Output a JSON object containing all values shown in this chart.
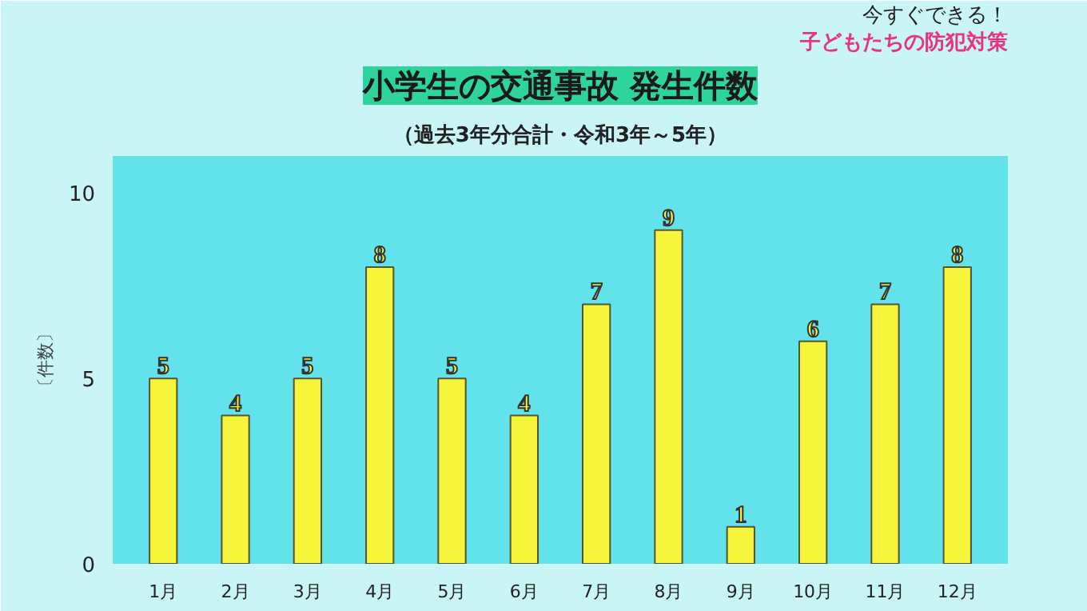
{
  "chart_data": {
    "type": "bar",
    "title": "小学生の交通事故 発生件数",
    "subtitle": "（過去3年分合計・令和3年～5年）",
    "ylabel": "〔件数〕",
    "annotations": [
      "今すぐできる！",
      "子どもたちの防犯対策"
    ],
    "categories": [
      "1月",
      "2月",
      "3月",
      "4月",
      "5月",
      "6月",
      "7月",
      "8月",
      "9月",
      "10月",
      "11月",
      "12月"
    ],
    "values": [
      5,
      4,
      5,
      8,
      5,
      4,
      7,
      9,
      1,
      6,
      7,
      8
    ],
    "color": "#f7f43c",
    "ylim": [
      0,
      11
    ],
    "yticks": [
      0,
      5,
      10
    ],
    "grid": false,
    "data_labels": true
  }
}
